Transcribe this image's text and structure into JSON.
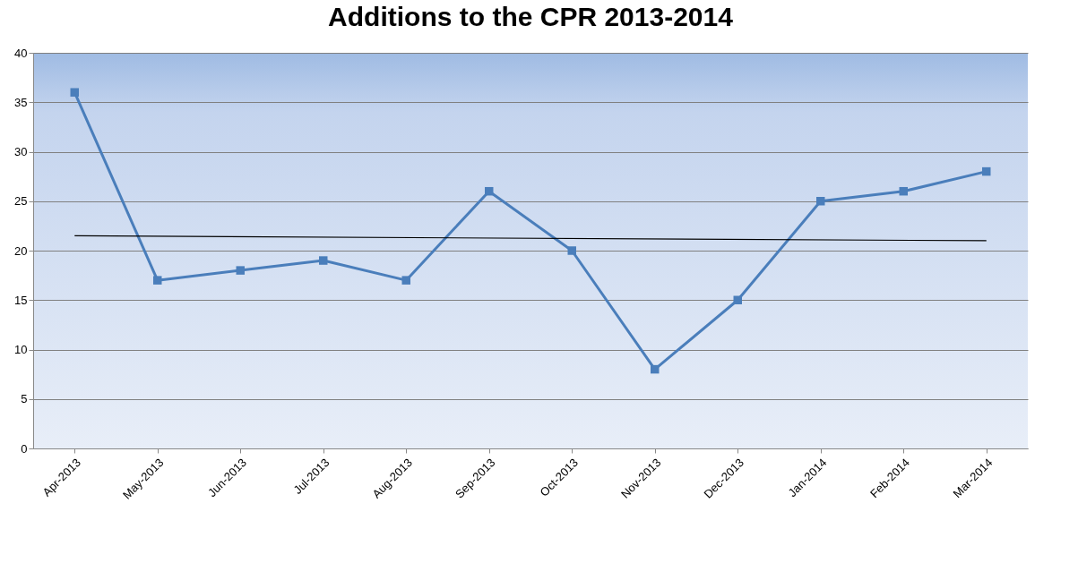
{
  "chart_data": {
    "type": "line",
    "title": "Additions to the CPR 2013-2014",
    "categories": [
      "Apr-2013",
      "May-2013",
      "Jun-2013",
      "Jul-2013",
      "Aug-2013",
      "Sep-2013",
      "Oct-2013",
      "Nov-2013",
      "Dec-2013",
      "Jan-2014",
      "Feb-2014",
      "Mar-2014"
    ],
    "series": [
      {
        "color": "#4a7ebb",
        "values": [
          36,
          17,
          18,
          19,
          17,
          26,
          20,
          8,
          15,
          25,
          26,
          28
        ],
        "marker": "square"
      },
      {
        "type": "line",
        "color": "#000000",
        "x": [
          "Apr-2013",
          "Mar-2014"
        ],
        "values": [
          21.5,
          21.0
        ],
        "marker": "none"
      }
    ],
    "ylim": [
      0,
      40
    ],
    "yticks": [
      0,
      5,
      10,
      15,
      20,
      25,
      30,
      35,
      40
    ],
    "grid": "y"
  }
}
